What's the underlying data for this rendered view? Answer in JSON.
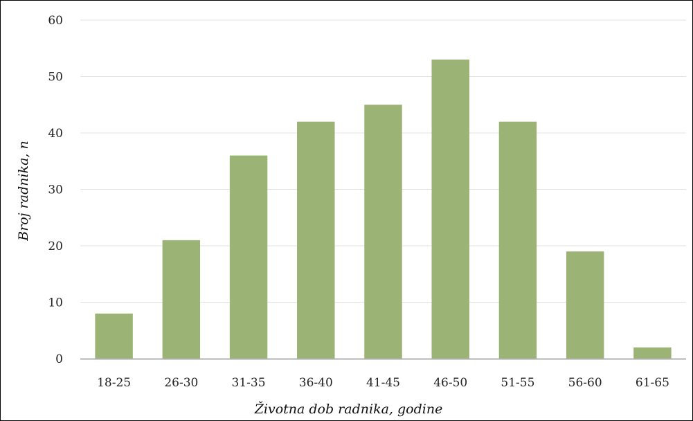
{
  "chart_data": {
    "type": "bar",
    "title": "",
    "xlabel": "Životna dob radnika, godine",
    "ylabel": "Broj radnika, n",
    "categories": [
      "18-25",
      "26-30",
      "31-35",
      "36-40",
      "41-45",
      "46-50",
      "51-55",
      "56-60",
      "61-65"
    ],
    "values": [
      8,
      21,
      36,
      42,
      45,
      53,
      42,
      19,
      2
    ],
    "ylim": [
      0,
      60
    ],
    "yticks": [
      0,
      10,
      20,
      30,
      40,
      50,
      60
    ],
    "grid": true,
    "legend": "none",
    "colors": {
      "bar": "#9bb375",
      "grid": "#e3e3e3",
      "axis": "#b0b0b0"
    }
  }
}
